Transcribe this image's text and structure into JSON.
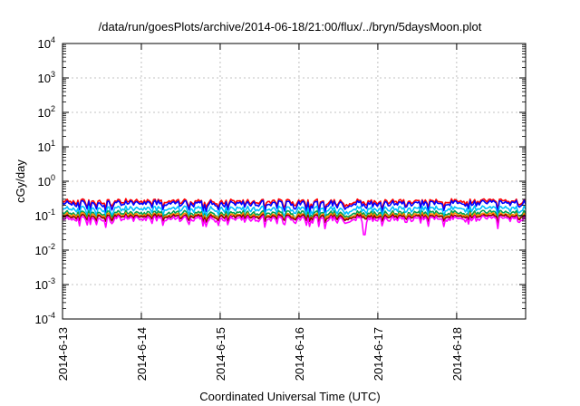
{
  "chart_data": {
    "type": "line",
    "title": "/data/run/goesPlots/archive/2014-06-18/21:00/flux/../bryn/5daysMoon.plot",
    "xlabel": "Coordinated Universal Time (UTC)",
    "ylabel": "cGy/day",
    "y_scale": "log",
    "ylim": [
      0.0001,
      10000
    ],
    "xlim": [
      "2014-06-13",
      "2014-06-18 21:00"
    ],
    "x_ticks": [
      "2014-6-13",
      "2014-6-14",
      "2014-6-15",
      "2014-6-16",
      "2014-6-17",
      "2014-6-18"
    ],
    "y_ticks": [
      {
        "base": "10",
        "exp": "4"
      },
      {
        "base": "10",
        "exp": "3"
      },
      {
        "base": "10",
        "exp": "2"
      },
      {
        "base": "10",
        "exp": "1"
      },
      {
        "base": "10",
        "exp": "0"
      },
      {
        "base": "10",
        "exp": "-1"
      },
      {
        "base": "10",
        "exp": "-2"
      },
      {
        "base": "10",
        "exp": "-3"
      },
      {
        "base": "10",
        "exp": "-4"
      }
    ],
    "grid": true,
    "series": [
      {
        "color": "#ff0000",
        "level": 0.26,
        "spread": 0.09
      },
      {
        "color": "#0000ff",
        "level": 0.23,
        "spread": 0.09
      },
      {
        "color": "#00bfff",
        "level": 0.16,
        "spread": 0.06
      },
      {
        "color": "#00a050",
        "level": 0.12,
        "spread": 0.04
      },
      {
        "color": "#ff8c00",
        "level": 0.105,
        "spread": 0.03
      },
      {
        "color": "#8b0000",
        "level": 0.095,
        "spread": 0.025
      },
      {
        "color": "#ff00ff",
        "level": 0.082,
        "spread": 0.03
      }
    ]
  }
}
